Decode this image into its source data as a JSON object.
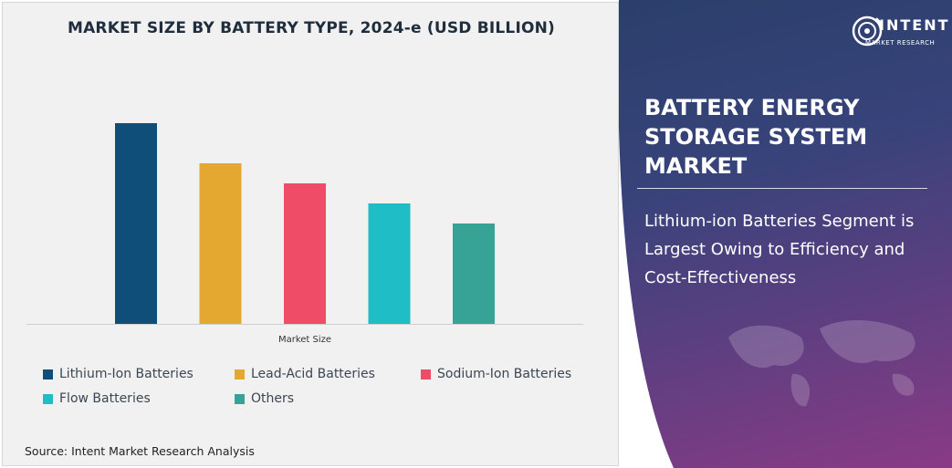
{
  "chart_data": {
    "type": "bar",
    "title": "MARKET SIZE BY BATTERY TYPE, 2024-e (USD BILLION)",
    "xlabel": "Market Size",
    "ylabel": "",
    "categories": [
      "Lithium-Ion Batteries",
      "Lead-Acid Batteries",
      "Sodium-Ion Batteries",
      "Flow Batteries",
      "Others"
    ],
    "values": [
      100,
      80,
      70,
      60,
      50
    ],
    "colors": [
      "#0e4e78",
      "#e4a72f",
      "#ef4c67",
      "#1fbdc6",
      "#36a396"
    ],
    "ylim": [
      0,
      110
    ],
    "value_scale_note": "",
    "grid": false,
    "legend_position": "bottom"
  },
  "legend": {
    "items": [
      {
        "label": "Lithium-Ion Batteries",
        "color": "#0e4e78"
      },
      {
        "label": "Lead-Acid Batteries",
        "color": "#e4a72f"
      },
      {
        "label": "Sodium-Ion Batteries",
        "color": "#ef4c67"
      },
      {
        "label": "Flow Batteries",
        "color": "#1fbdc6"
      },
      {
        "label": "Others",
        "color": "#36a396"
      }
    ]
  },
  "source": "Source: Intent Market Research Analysis",
  "brand": {
    "name": "INTENT",
    "tagline": "MARKET RESEARCH"
  },
  "report": {
    "title": "BATTERY ENERGY STORAGE SYSTEM MARKET",
    "subtitle": "Lithium-ion Batteries Segment is Largest Owing to Efficiency and Cost-Effectiveness"
  }
}
